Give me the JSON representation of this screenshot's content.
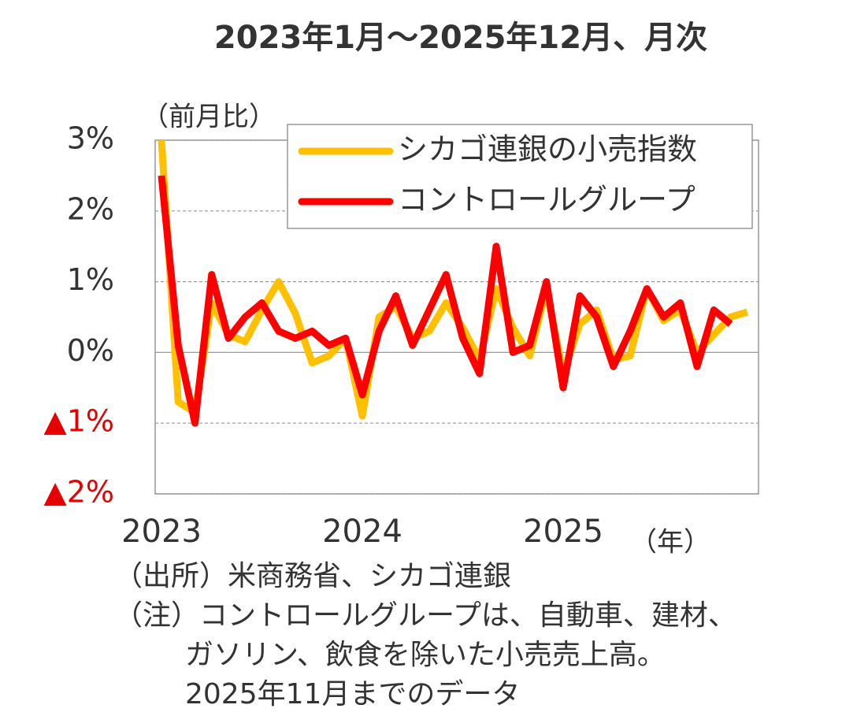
{
  "chart_data": {
    "type": "line",
    "title": "2023年1月～2025年12月、月次",
    "y_label": "（前月比）",
    "x_label": "（年）",
    "categories": [
      "2023",
      null,
      null,
      null,
      null,
      null,
      null,
      null,
      null,
      null,
      null,
      null,
      "2024",
      null,
      null,
      null,
      null,
      null,
      null,
      null,
      null,
      null,
      null,
      null,
      "2025",
      null,
      null,
      null,
      null,
      null,
      null,
      null,
      null,
      null,
      null,
      null
    ],
    "series": [
      {
        "name": "シカゴ連銀の小売指数",
        "color": "#ffc000",
        "values": [
          3.0,
          -0.7,
          -0.85,
          0.7,
          0.25,
          0.15,
          0.6,
          1.0,
          0.55,
          -0.15,
          -0.05,
          0.2,
          -0.9,
          0.5,
          0.65,
          0.2,
          0.3,
          0.7,
          0.35,
          -0.1,
          0.9,
          0.35,
          -0.05,
          0.9,
          -0.3,
          0.4,
          0.6,
          -0.1,
          -0.05,
          0.9,
          0.45,
          0.6,
          0.0,
          0.25,
          0.5,
          0.57
        ]
      },
      {
        "name": "コントロールグループ",
        "color": "#ff0000",
        "values": [
          2.5,
          0.1,
          -1.0,
          1.1,
          0.2,
          0.5,
          0.7,
          0.3,
          0.2,
          0.3,
          0.1,
          0.2,
          -0.6,
          0.3,
          0.8,
          0.1,
          0.6,
          1.1,
          0.2,
          -0.3,
          1.5,
          0.0,
          0.1,
          1.0,
          -0.5,
          0.8,
          0.5,
          -0.2,
          0.3,
          0.9,
          0.5,
          0.7,
          -0.2,
          0.6,
          0.4,
          null
        ]
      }
    ],
    "ylim": [
      -2,
      3
    ],
    "yticks": [
      {
        "value": 3,
        "label": "3%"
      },
      {
        "value": 2,
        "label": "2%"
      },
      {
        "value": 1,
        "label": "1%"
      },
      {
        "value": 0,
        "label": "0%"
      },
      {
        "value": -1,
        "label": "▲1%"
      },
      {
        "value": -2,
        "label": "▲2%"
      }
    ],
    "negative_tick_color": "#e60000",
    "grid": true,
    "legend": "upper right",
    "notes": [
      "（出所）米商務省、シカゴ連銀",
      "（注）コントロールグループは、自動車、建材、",
      "ガソリン、飲食を除いた小売売上高。",
      "2025年11月までのデータ"
    ]
  }
}
